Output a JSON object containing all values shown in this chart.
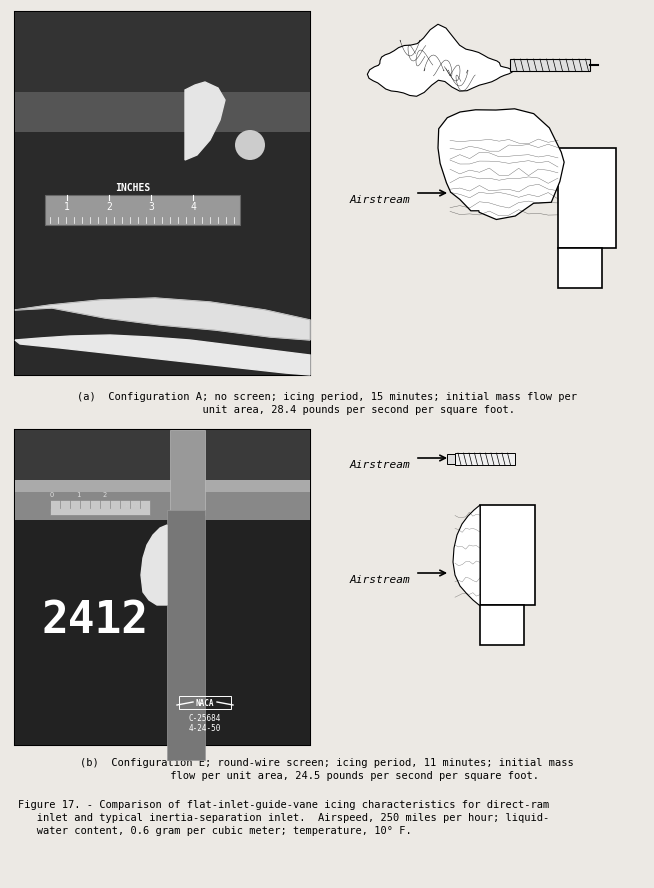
{
  "background_color": "#ece9e4",
  "caption_a_line1": "(a)  Configuration A; no screen; icing period, 15 minutes; initial mass flow per",
  "caption_a_line2": "          unit area, 28.4 pounds per second per square foot.",
  "caption_b_line1": "(b)  Configuration E; round-wire screen; icing period, 11 minutes; initial mass",
  "caption_b_line2": "         flow per unit area, 24.5 pounds per second per square foot.",
  "fig_cap_line1": "Figure 17. - Comparison of flat-inlet-guide-vane icing characteristics for direct-ram",
  "fig_cap_line2": "   inlet and typical inertia-separation inlet.  Airspeed, 250 miles per hour; liquid-",
  "fig_cap_line3": "   water content, 0.6 gram per cubic meter; temperature, 10° F.",
  "airstream": "Airstream",
  "inches_label": "INCHES",
  "number_2412": "2412",
  "naca_line1": "NACA",
  "naca_line2": "C-25684",
  "naca_line3": "4-24-50"
}
